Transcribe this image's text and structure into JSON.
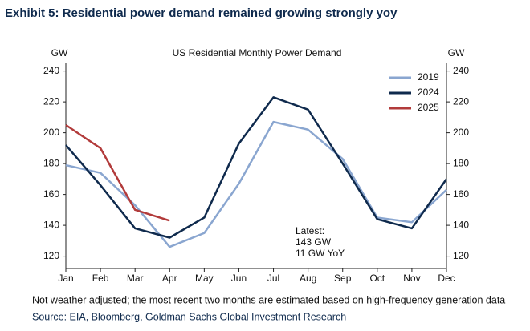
{
  "chart_data": {
    "type": "line",
    "title": "Exhibit 5: Residential power demand remained growing strongly yoy",
    "subtitle": "US Residential Monthly Power Demand",
    "ylabel": "GW",
    "y2label": "GW",
    "categories": [
      "Jan",
      "Feb",
      "Mar",
      "Apr",
      "May",
      "Jun",
      "Jul",
      "Aug",
      "Sep",
      "Oct",
      "Nov",
      "Dec"
    ],
    "series": [
      {
        "name": "2019",
        "color": "#8aa6d0",
        "values": [
          179,
          174,
          153,
          126,
          135,
          167,
          207,
          202,
          183,
          145,
          142,
          163
        ]
      },
      {
        "name": "2024",
        "color": "#0f2a4d",
        "values": [
          192,
          166,
          138,
          132,
          145,
          193,
          223,
          215,
          180,
          144,
          138,
          170
        ]
      },
      {
        "name": "2025",
        "color": "#b23b3b",
        "values": [
          205,
          190,
          150,
          143,
          null,
          null,
          null,
          null,
          null,
          null,
          null,
          null
        ]
      }
    ],
    "ylim": [
      112,
      245
    ],
    "yticks": [
      120,
      140,
      160,
      180,
      200,
      220,
      240
    ],
    "y2lim": [
      112,
      245
    ],
    "y2ticks": [
      120,
      140,
      160,
      180,
      200,
      220,
      240
    ],
    "legend": "upper right",
    "annotations": [
      "Latest:",
      "143 GW",
      "11 GW YoY"
    ],
    "notes": [
      "Not weather adjusted; the most recent two months are estimated based on high-frequency generation data",
      "Source: EIA, Bloomberg, Goldman Sachs Global Investment Research"
    ]
  }
}
